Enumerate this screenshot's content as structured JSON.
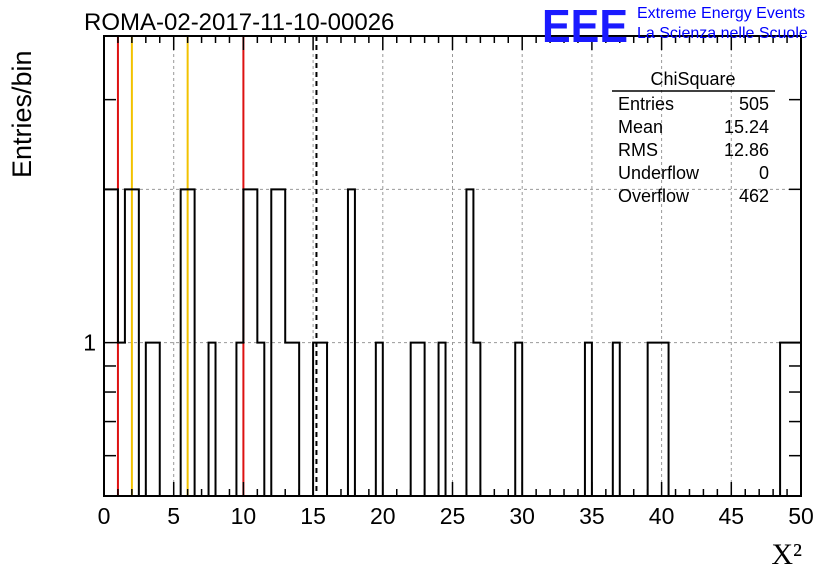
{
  "chart_data": {
    "type": "histogram",
    "title": "ROMA-02-2017-11-10-00026",
    "xlabel": "X²",
    "ylabel": "Entries/bin",
    "xlim": [
      0,
      50
    ],
    "ylim": [
      0.5,
      4
    ],
    "yscale": "log",
    "grid": true,
    "x_ticks": [
      "0",
      "5",
      "10",
      "15",
      "20",
      "25",
      "30",
      "35",
      "40",
      "45",
      "50"
    ],
    "y_tick_labels": [
      {
        "value": 1,
        "label": "1"
      }
    ],
    "bins": [
      {
        "x0": 0.0,
        "x1": 1.0,
        "count": 2
      },
      {
        "x0": 1.0,
        "x1": 1.5,
        "count": 1
      },
      {
        "x0": 1.5,
        "x1": 2.5,
        "count": 2
      },
      {
        "x0": 3.0,
        "x1": 4.0,
        "count": 1
      },
      {
        "x0": 5.5,
        "x1": 6.5,
        "count": 2
      },
      {
        "x0": 7.5,
        "x1": 8.0,
        "count": 1
      },
      {
        "x0": 9.5,
        "x1": 10.0,
        "count": 1
      },
      {
        "x0": 10.0,
        "x1": 10.5,
        "count": 2
      },
      {
        "x0": 10.5,
        "x1": 11.0,
        "count": 2
      },
      {
        "x0": 11.0,
        "x1": 11.5,
        "count": 1
      },
      {
        "x0": 12.0,
        "x1": 13.0,
        "count": 2
      },
      {
        "x0": 13.0,
        "x1": 14.0,
        "count": 1
      },
      {
        "x0": 15.0,
        "x1": 16.0,
        "count": 1
      },
      {
        "x0": 17.5,
        "x1": 18.0,
        "count": 2
      },
      {
        "x0": 19.5,
        "x1": 20.0,
        "count": 1
      },
      {
        "x0": 22.0,
        "x1": 23.0,
        "count": 1
      },
      {
        "x0": 24.0,
        "x1": 24.5,
        "count": 1
      },
      {
        "x0": 26.0,
        "x1": 26.5,
        "count": 2
      },
      {
        "x0": 26.5,
        "x1": 27.0,
        "count": 1
      },
      {
        "x0": 29.5,
        "x1": 30.0,
        "count": 1
      },
      {
        "x0": 34.5,
        "x1": 35.0,
        "count": 1
      },
      {
        "x0": 36.5,
        "x1": 37.0,
        "count": 1
      },
      {
        "x0": 39.0,
        "x1": 40.5,
        "count": 1
      },
      {
        "x0": 48.5,
        "x1": 50.0,
        "count": 1
      }
    ],
    "vertical_lines": [
      {
        "x": 1.0,
        "color": "#dd1111",
        "style": "solid"
      },
      {
        "x": 2.0,
        "color": "#f2c200",
        "style": "solid"
      },
      {
        "x": 6.0,
        "color": "#f2c200",
        "style": "solid"
      },
      {
        "x": 10.0,
        "color": "#dd1111",
        "style": "solid"
      },
      {
        "x": 15.24,
        "color": "#000000",
        "style": "dashed"
      }
    ],
    "stats_box": {
      "title": "ChiSquare",
      "rows": [
        {
          "label": "Entries",
          "value": "505"
        },
        {
          "label": "Mean",
          "value": "15.24"
        },
        {
          "label": "RMS",
          "value": "12.86"
        },
        {
          "label": "Underflow",
          "value": "0"
        },
        {
          "label": "Overflow",
          "value": "462"
        }
      ]
    }
  },
  "logo": {
    "text": "EEE",
    "line1": "Extreme Energy Events",
    "line2": "La Scienza nelle Scuole",
    "color": "#1a1aff"
  }
}
